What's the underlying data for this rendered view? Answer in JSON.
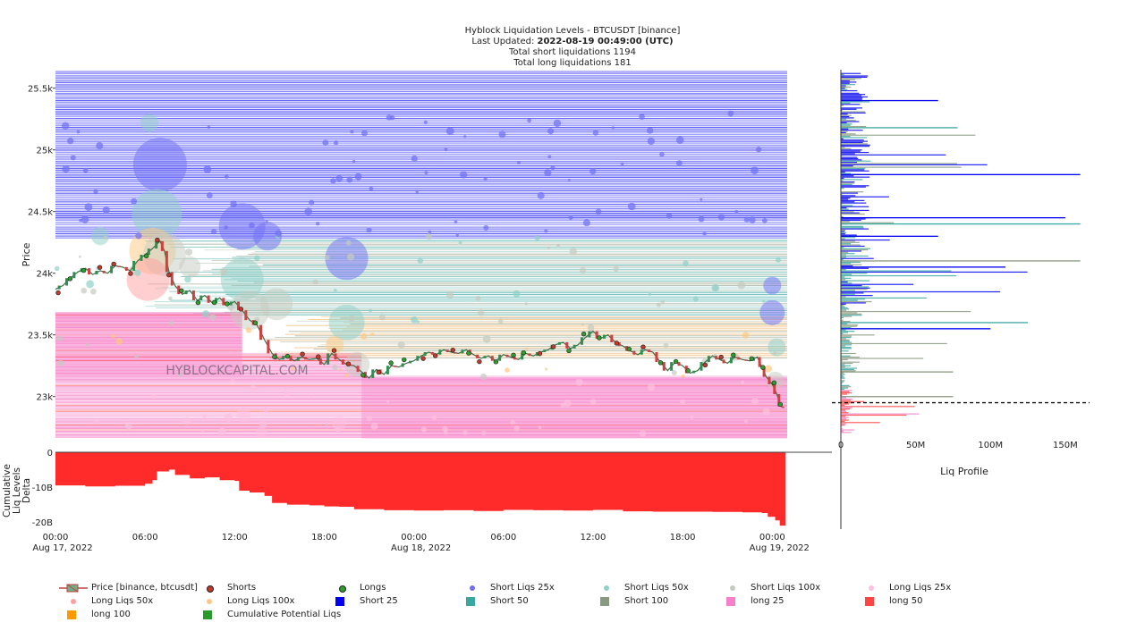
{
  "header": {
    "title": "Hyblock Liquidation Levels - BTCUSDT [binance]",
    "updated_prefix": "Last Updated: ",
    "updated_value": "2022-08-19 00:49:00 (UTC)",
    "short_total": "Total short liquidations 1194",
    "long_total": "Total long liquidations 181"
  },
  "watermark": "HYBLOCKCAPITAL.COM",
  "colors": {
    "short25": "#0000ee",
    "short50": "#3aa7a0",
    "short100": "#8a9a80",
    "long25": "#f57fc8",
    "long50": "#ff4444",
    "long100": "#ff9900",
    "cumulative": "#2a9a2a",
    "delta_fill": "#ff2a2a",
    "price_up": "#2f8f4f",
    "price_down": "#d04040",
    "short_dot": "#c0392b",
    "long_dot": "#2e9e2e"
  },
  "chart_data": [
    {
      "type": "line",
      "name": "Price",
      "ylabel": "Price",
      "ylim": [
        22650,
        25650
      ],
      "y_ticks": [
        23000,
        23500,
        24000,
        24500,
        25000,
        25500
      ],
      "y_tick_labels": [
        "23k",
        "23.5k",
        "24k",
        "24.5k",
        "25k",
        "25.5k"
      ],
      "x_ticks": [
        {
          "hours": 0,
          "label": "00:00",
          "sub": "Aug 17, 2022"
        },
        {
          "hours": 6,
          "label": "06:00",
          "sub": ""
        },
        {
          "hours": 12,
          "label": "12:00",
          "sub": ""
        },
        {
          "hours": 18,
          "label": "18:00",
          "sub": ""
        },
        {
          "hours": 24,
          "label": "00:00",
          "sub": "Aug 18, 2022"
        },
        {
          "hours": 30,
          "label": "06:00",
          "sub": ""
        },
        {
          "hours": 36,
          "label": "12:00",
          "sub": ""
        },
        {
          "hours": 42,
          "label": "18:00",
          "sub": ""
        },
        {
          "hours": 48,
          "label": "00:00",
          "sub": "Aug 19, 2022"
        }
      ],
      "xlim_hours": [
        0,
        49
      ],
      "price": [
        [
          0,
          23870
        ],
        [
          0.5,
          23900
        ],
        [
          1,
          23960
        ],
        [
          1.5,
          24010
        ],
        [
          2,
          24040
        ],
        [
          2.5,
          23990
        ],
        [
          3,
          24020
        ],
        [
          3.5,
          24000
        ],
        [
          4,
          24060
        ],
        [
          4.5,
          24050
        ],
        [
          5,
          24020
        ],
        [
          5.5,
          24100
        ],
        [
          6,
          24150
        ],
        [
          6.5,
          24200
        ],
        [
          7,
          24260
        ],
        [
          7.3,
          24180
        ],
        [
          7.6,
          24010
        ],
        [
          8,
          23900
        ],
        [
          8.5,
          23830
        ],
        [
          9,
          23860
        ],
        [
          9.5,
          23780
        ],
        [
          10,
          23820
        ],
        [
          10.5,
          23760
        ],
        [
          11,
          23800
        ],
        [
          11.5,
          23740
        ],
        [
          12,
          23770
        ],
        [
          12.5,
          23700
        ],
        [
          13,
          23620
        ],
        [
          13.5,
          23580
        ],
        [
          14,
          23460
        ],
        [
          14.5,
          23350
        ],
        [
          15,
          23300
        ],
        [
          15.5,
          23330
        ],
        [
          16,
          23290
        ],
        [
          16.5,
          23320
        ],
        [
          17,
          23300
        ],
        [
          17.5,
          23310
        ],
        [
          18,
          23260
        ],
        [
          18.5,
          23350
        ],
        [
          19,
          23300
        ],
        [
          19.5,
          23260
        ],
        [
          20,
          23250
        ],
        [
          20.5,
          23200
        ],
        [
          21,
          23150
        ],
        [
          21.5,
          23220
        ],
        [
          22,
          23180
        ],
        [
          22.5,
          23250
        ],
        [
          23,
          23240
        ],
        [
          23.5,
          23270
        ],
        [
          24,
          23290
        ],
        [
          24.5,
          23330
        ],
        [
          25,
          23360
        ],
        [
          25.5,
          23340
        ],
        [
          26,
          23380
        ],
        [
          26.5,
          23360
        ],
        [
          27,
          23350
        ],
        [
          27.5,
          23380
        ],
        [
          28,
          23340
        ],
        [
          28.5,
          23310
        ],
        [
          29,
          23330
        ],
        [
          29.5,
          23290
        ],
        [
          30,
          23340
        ],
        [
          30.5,
          23320
        ],
        [
          31,
          23300
        ],
        [
          31.5,
          23350
        ],
        [
          32,
          23330
        ],
        [
          32.5,
          23360
        ],
        [
          33,
          23380
        ],
        [
          33.5,
          23420
        ],
        [
          34,
          23440
        ],
        [
          34.5,
          23390
        ],
        [
          35,
          23420
        ],
        [
          35.5,
          23480
        ],
        [
          36,
          23530
        ],
        [
          36.5,
          23470
        ],
        [
          37,
          23500
        ],
        [
          37.5,
          23440
        ],
        [
          38,
          23410
        ],
        [
          38.5,
          23370
        ],
        [
          39,
          23340
        ],
        [
          39.5,
          23380
        ],
        [
          40,
          23360
        ],
        [
          40.5,
          23280
        ],
        [
          41,
          23210
        ],
        [
          41.5,
          23280
        ],
        [
          42,
          23250
        ],
        [
          42.5,
          23190
        ],
        [
          43,
          23210
        ],
        [
          43.5,
          23280
        ],
        [
          44,
          23330
        ],
        [
          44.5,
          23300
        ],
        [
          45,
          23270
        ],
        [
          45.5,
          23320
        ],
        [
          46,
          23300
        ],
        [
          46.5,
          23290
        ],
        [
          47,
          23320
        ],
        [
          47.3,
          23240
        ],
        [
          47.6,
          23160
        ],
        [
          48,
          23100
        ],
        [
          48.3,
          23020
        ],
        [
          48.6,
          22920
        ],
        [
          48.8,
          22910
        ]
      ]
    },
    {
      "type": "area",
      "name": "Cumulative Liq Levels Delta",
      "ylabel": "Cumulative Liq Levels Delta",
      "ylim": [
        -22,
        0
      ],
      "y_ticks": [
        0,
        -10,
        -20
      ],
      "y_tick_labels": [
        "0",
        "-10B",
        "-20B"
      ],
      "delta": [
        [
          0,
          -9.5
        ],
        [
          2,
          -9.8
        ],
        [
          4,
          -9.6
        ],
        [
          6,
          -9.0
        ],
        [
          6.5,
          -8.0
        ],
        [
          6.8,
          -5.5
        ],
        [
          7.6,
          -5.0
        ],
        [
          8,
          -6.5
        ],
        [
          9,
          -7.5
        ],
        [
          10,
          -7.2
        ],
        [
          11,
          -8.0
        ],
        [
          12,
          -8.2
        ],
        [
          12.3,
          -11.0
        ],
        [
          13,
          -11.5
        ],
        [
          14,
          -12.5
        ],
        [
          14.5,
          -14.5
        ],
        [
          15.5,
          -15.0
        ],
        [
          17,
          -15.2
        ],
        [
          18,
          -15.5
        ],
        [
          19,
          -15.6
        ],
        [
          20,
          -16.3
        ],
        [
          22,
          -16.6
        ],
        [
          24,
          -16.7
        ],
        [
          26,
          -16.6
        ],
        [
          28,
          -16.8
        ],
        [
          30,
          -16.5
        ],
        [
          32,
          -16.6
        ],
        [
          34,
          -16.7
        ],
        [
          36,
          -16.5
        ],
        [
          38,
          -16.9
        ],
        [
          40,
          -17.0
        ],
        [
          42,
          -17.0
        ],
        [
          44,
          -17.1
        ],
        [
          46,
          -17.2
        ],
        [
          47.3,
          -17.4
        ],
        [
          47.7,
          -18.5
        ],
        [
          48.2,
          -19.5
        ],
        [
          48.5,
          -21.0
        ],
        [
          48.9,
          -21.5
        ]
      ]
    },
    {
      "type": "bar",
      "name": "Liq Profile",
      "xlabel": "Liq Profile",
      "xlim": [
        0,
        165
      ],
      "x_ticks": [
        0,
        50,
        100,
        150
      ],
      "x_tick_labels": [
        "0",
        "50M",
        "100M",
        "150M"
      ]
    }
  ],
  "legend": [
    {
      "label": "Price [binance, btcusdt]",
      "kind": "price"
    },
    {
      "label": "Shorts",
      "kind": "dot",
      "color": "#c0392b"
    },
    {
      "label": "Longs",
      "kind": "dot",
      "color": "#2e9e2e"
    },
    {
      "label": "Short Liqs 25x",
      "kind": "dot",
      "color": "#6f6ff5"
    },
    {
      "label": "Short Liqs 50x",
      "kind": "dot",
      "color": "#8fd0c8"
    },
    {
      "label": "Short Liqs 100x",
      "kind": "dot",
      "color": "#c5cbc0"
    },
    {
      "label": "Long Liqs 25x",
      "kind": "dot",
      "color": "#ffc0e0"
    },
    {
      "label": "Long Liqs 50x",
      "kind": "dot",
      "color": "#ff9f9f"
    },
    {
      "label": "Long Liqs 100x",
      "kind": "dot",
      "color": "#ffc880"
    },
    {
      "label": "Short 25",
      "kind": "square",
      "color": "#0000ee"
    },
    {
      "label": "Short 50",
      "kind": "square",
      "color": "#3aa7a0"
    },
    {
      "label": "Short 100",
      "kind": "square",
      "color": "#8a9a80"
    },
    {
      "label": "long 25",
      "kind": "square",
      "color": "#f57fc8"
    },
    {
      "label": "long 50",
      "kind": "square",
      "color": "#ff4444"
    },
    {
      "label": "long 100",
      "kind": "square",
      "color": "#ff9900"
    },
    {
      "label": "Cumulative Potential Liqs",
      "kind": "square",
      "color": "#2a9a2a"
    }
  ]
}
